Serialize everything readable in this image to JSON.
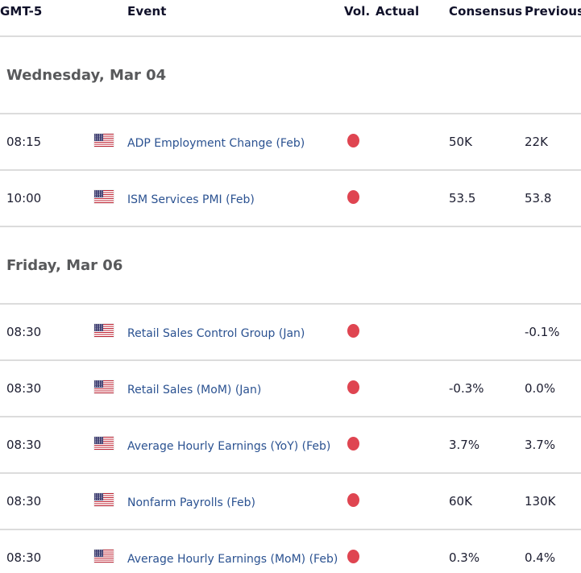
{
  "table": {
    "timezone": "GMT-5",
    "columns": [
      {
        "key": "time",
        "label": "GMT-5"
      },
      {
        "key": "event",
        "label": "Event"
      },
      {
        "key": "vol",
        "label": "Vol."
      },
      {
        "key": "actual",
        "label": "Actual"
      },
      {
        "key": "consensus",
        "label": "Consensus"
      },
      {
        "key": "previous",
        "label": "Previous"
      }
    ],
    "sections": [
      {
        "date_label": "Wednesday, Mar 04",
        "rows": [
          {
            "time": "08:15",
            "country": "US",
            "flag_icon": "us-flag-icon",
            "event": "ADP Employment Change (Feb)",
            "volatility": "high",
            "actual": "",
            "consensus": "50K",
            "previous": "22K"
          },
          {
            "time": "10:00",
            "country": "US",
            "flag_icon": "us-flag-icon",
            "event": "ISM Services PMI (Feb)",
            "volatility": "high",
            "actual": "",
            "consensus": "53.5",
            "previous": "53.8"
          }
        ]
      },
      {
        "date_label": "Friday, Mar 06",
        "rows": [
          {
            "time": "08:30",
            "country": "US",
            "flag_icon": "us-flag-icon",
            "event": "Retail Sales Control Group (Jan)",
            "volatility": "high",
            "actual": "",
            "consensus": "",
            "previous": "-0.1%"
          },
          {
            "time": "08:30",
            "country": "US",
            "flag_icon": "us-flag-icon",
            "event": "Retail Sales (MoM) (Jan)",
            "volatility": "high",
            "actual": "",
            "consensus": "-0.3%",
            "previous": "0.0%"
          },
          {
            "time": "08:30",
            "country": "US",
            "flag_icon": "us-flag-icon",
            "event": "Average Hourly Earnings (YoY) (Feb)",
            "volatility": "high",
            "actual": "",
            "consensus": "3.7%",
            "previous": "3.7%"
          },
          {
            "time": "08:30",
            "country": "US",
            "flag_icon": "us-flag-icon",
            "event": "Nonfarm Payrolls (Feb)",
            "volatility": "high",
            "actual": "",
            "consensus": "60K",
            "previous": "130K"
          },
          {
            "time": "08:30",
            "country": "US",
            "flag_icon": "us-flag-icon",
            "event": "Average Hourly Earnings (MoM) (Feb)",
            "volatility": "high",
            "actual": "",
            "consensus": "0.3%",
            "previous": "0.4%"
          }
        ]
      }
    ]
  },
  "colors": {
    "high_volatility_dot": "#df4551",
    "event_link": "#2b5291",
    "header_text": "#10112a",
    "day_header_text": "#58595b",
    "body_text": "#1c1d30",
    "divider": "#dcdcdc",
    "flag_red": "#bf2333",
    "flag_blue": "#3a3a6e",
    "background": "#ffffff"
  }
}
